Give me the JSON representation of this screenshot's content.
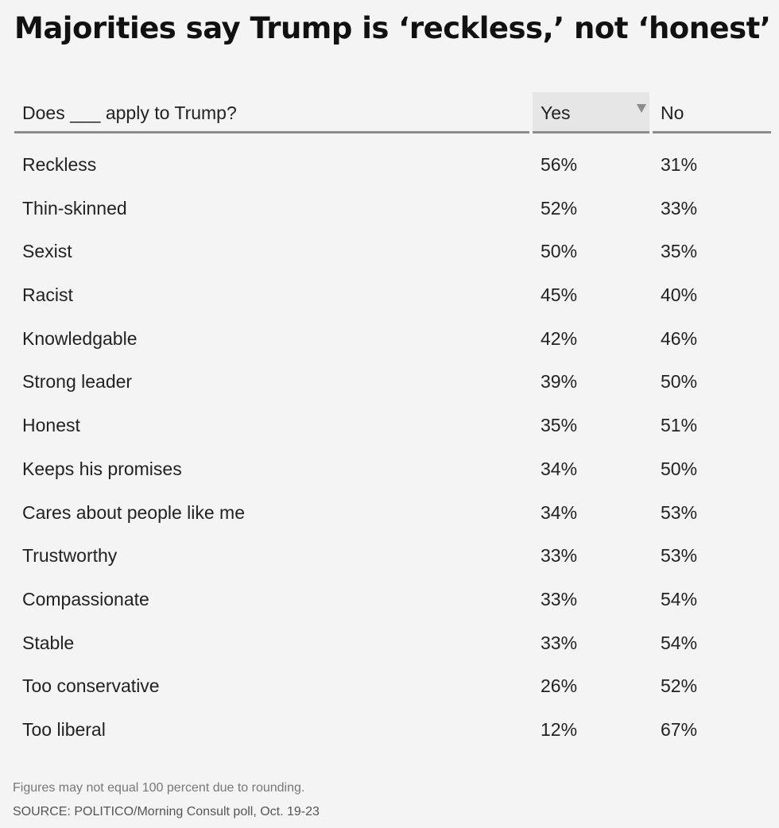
{
  "title": "Majorities say Trump is ‘reckless,’ not ‘honest’",
  "table": {
    "headers": {
      "question": "Does ___ apply to Trump?",
      "yes": "Yes",
      "no": "No"
    },
    "sort_icon": "sort-descending-triangle-icon"
  },
  "chart_data": {
    "type": "table",
    "title": "Majorities say Trump is ‘reckless,’ not ‘honest’",
    "columns": [
      "Does ___ apply to Trump?",
      "Yes",
      "No"
    ],
    "sorted_by": "Yes",
    "sort_order": "descending",
    "rows": [
      {
        "label": "Reckless",
        "yes": "56%",
        "no": "31%"
      },
      {
        "label": "Thin-skinned",
        "yes": "52%",
        "no": "33%"
      },
      {
        "label": "Sexist",
        "yes": "50%",
        "no": "35%"
      },
      {
        "label": "Racist",
        "yes": "45%",
        "no": "40%"
      },
      {
        "label": "Knowledgable",
        "yes": "42%",
        "no": "46%"
      },
      {
        "label": "Strong leader",
        "yes": "39%",
        "no": "50%"
      },
      {
        "label": "Honest",
        "yes": "35%",
        "no": "51%"
      },
      {
        "label": "Keeps his promises",
        "yes": "34%",
        "no": "50%"
      },
      {
        "label": "Cares about people like me",
        "yes": "34%",
        "no": "53%"
      },
      {
        "label": "Trustworthy",
        "yes": "33%",
        "no": "53%"
      },
      {
        "label": "Compassionate",
        "yes": "33%",
        "no": "54%"
      },
      {
        "label": "Stable",
        "yes": "33%",
        "no": "54%"
      },
      {
        "label": "Too conservative",
        "yes": "26%",
        "no": "52%"
      },
      {
        "label": "Too liberal",
        "yes": "12%",
        "no": "67%"
      }
    ]
  },
  "footnote": "Figures may not equal 100 percent due to rounding.",
  "source": "SOURCE: POLITICO/Morning Consult poll, Oct. 19-23",
  "colors": {
    "background": "#f4f4f4",
    "text": "#222222",
    "header_rule": "#8c8c8c",
    "sorted_column_bg": "#e6e6e6",
    "footnote_text": "#777777"
  }
}
